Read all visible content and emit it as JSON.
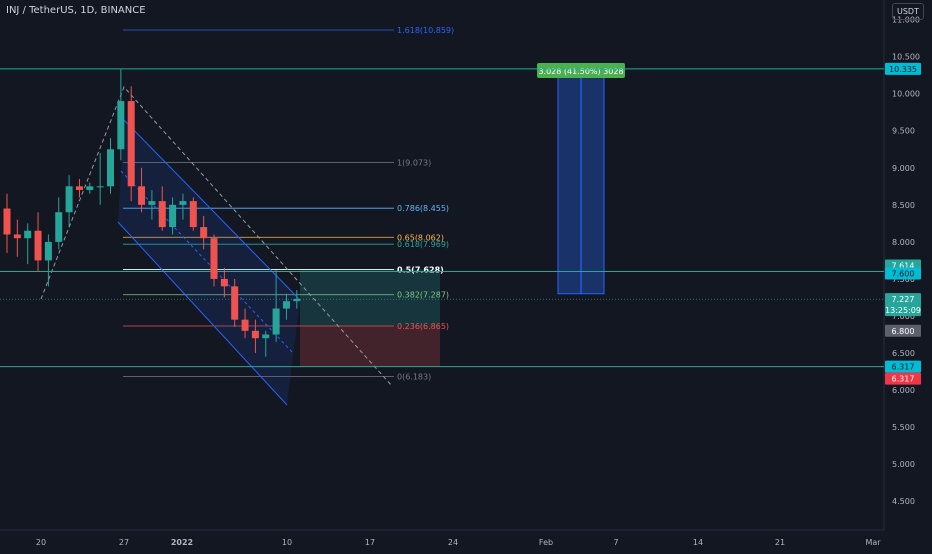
{
  "title": "INJ / TetherUS, 1D, BINANCE",
  "currency_button": "USDT",
  "colors": {
    "background": "#131722",
    "up": "#26a69a",
    "down": "#ef5350",
    "grid_text": "#b2b5be",
    "horizontal_line": "#22ab94",
    "channel": "#2962ff",
    "measure_box": "#1c3a7a",
    "measure_label_bg": "#4caf50",
    "price_tag_current": "#26a69a",
    "price_tag_grey": "#5d606b",
    "price_tag_red": "#f23645",
    "price_tag_cyan": "#00bcd4"
  },
  "chart_data": {
    "type": "candlestick",
    "y_axis": {
      "ticks": [
        "11.000",
        "10.500",
        "10.000",
        "9.500",
        "9.000",
        "8.500",
        "8.000",
        "7.500",
        "7.000",
        "6.500",
        "6.000",
        "5.500",
        "5.000",
        "4.500"
      ],
      "range": [
        4.4,
        11.5
      ]
    },
    "x_axis": {
      "ticks": [
        "20",
        "27",
        "2022",
        "10",
        "17",
        "24",
        "Feb",
        "7",
        "14",
        "21",
        "Mar"
      ]
    },
    "candles": [
      {
        "o": 8.45,
        "h": 8.65,
        "l": 7.85,
        "c": 8.1
      },
      {
        "o": 8.1,
        "h": 8.3,
        "l": 7.8,
        "c": 8.05
      },
      {
        "o": 8.05,
        "h": 8.25,
        "l": 7.7,
        "c": 8.15
      },
      {
        "o": 8.15,
        "h": 8.4,
        "l": 7.6,
        "c": 7.75
      },
      {
        "o": 7.75,
        "h": 8.1,
        "l": 7.4,
        "c": 8.0
      },
      {
        "o": 8.0,
        "h": 8.6,
        "l": 7.9,
        "c": 8.4
      },
      {
        "o": 8.4,
        "h": 8.9,
        "l": 8.2,
        "c": 8.75
      },
      {
        "o": 8.75,
        "h": 8.85,
        "l": 8.6,
        "c": 8.7
      },
      {
        "o": 8.7,
        "h": 8.8,
        "l": 8.65,
        "c": 8.75
      },
      {
        "o": 8.75,
        "h": 9.2,
        "l": 8.5,
        "c": 8.75
      },
      {
        "o": 8.75,
        "h": 9.4,
        "l": 8.65,
        "c": 9.25
      },
      {
        "o": 9.25,
        "h": 10.33,
        "l": 9.1,
        "c": 9.9
      },
      {
        "o": 9.9,
        "h": 10.1,
        "l": 8.55,
        "c": 8.75
      },
      {
        "o": 8.75,
        "h": 9.0,
        "l": 8.4,
        "c": 8.5
      },
      {
        "o": 8.5,
        "h": 8.7,
        "l": 8.3,
        "c": 8.55
      },
      {
        "o": 8.55,
        "h": 8.75,
        "l": 8.15,
        "c": 8.2
      },
      {
        "o": 8.2,
        "h": 8.6,
        "l": 8.1,
        "c": 8.5
      },
      {
        "o": 8.5,
        "h": 8.65,
        "l": 8.3,
        "c": 8.55
      },
      {
        "o": 8.55,
        "h": 8.6,
        "l": 8.15,
        "c": 8.2
      },
      {
        "o": 8.2,
        "h": 8.35,
        "l": 7.9,
        "c": 8.05
      },
      {
        "o": 8.05,
        "h": 8.1,
        "l": 7.4,
        "c": 7.5
      },
      {
        "o": 7.5,
        "h": 7.65,
        "l": 7.25,
        "c": 7.4
      },
      {
        "o": 7.4,
        "h": 7.5,
        "l": 6.85,
        "c": 6.95
      },
      {
        "o": 6.95,
        "h": 7.1,
        "l": 6.7,
        "c": 6.8
      },
      {
        "o": 6.8,
        "h": 6.95,
        "l": 6.5,
        "c": 6.7
      },
      {
        "o": 6.7,
        "h": 6.8,
        "l": 6.45,
        "c": 6.75
      },
      {
        "o": 6.75,
        "h": 7.62,
        "l": 6.65,
        "c": 7.1
      },
      {
        "o": 7.1,
        "h": 7.3,
        "l": 6.95,
        "c": 7.2
      },
      {
        "o": 7.2,
        "h": 7.35,
        "l": 7.1,
        "c": 7.23
      }
    ],
    "fib_levels": [
      {
        "label": "1.618(10.859)",
        "value": 10.859,
        "color": "#2962ff"
      },
      {
        "label": "1(9.073)",
        "value": 9.073,
        "color": "#787b86"
      },
      {
        "label": "0.786(8.455)",
        "value": 8.455,
        "color": "#64b5f6"
      },
      {
        "label": "0.65(8.062)",
        "value": 8.062,
        "color": "#ffb74d"
      },
      {
        "label": "0.618(7.969)",
        "value": 7.969,
        "color": "#26a69a"
      },
      {
        "label": "0.5(7.628)",
        "value": 7.628,
        "color": "#ffffff"
      },
      {
        "label": "0.382(7.287)",
        "value": 7.287,
        "color": "#81c784"
      },
      {
        "label": "0.236(6.865)",
        "value": 6.865,
        "color": "#ef5350"
      },
      {
        "label": "0(6.183)",
        "value": 6.183,
        "color": "#787b86"
      }
    ],
    "horizontal_lines": [
      10.335,
      7.6,
      6.317
    ],
    "measure": {
      "label": "3.028 (41.50%) 3028",
      "from": 7.3,
      "to": 10.335
    },
    "price_tags": [
      {
        "text": "10.335",
        "value": 10.335,
        "style": "cyan"
      },
      {
        "text": "7.614",
        "value": 7.614,
        "style": "current"
      },
      {
        "text": "7.600",
        "value": 7.6,
        "style": "cyan"
      },
      {
        "text": "7.227",
        "value": 7.227,
        "style": "current"
      },
      {
        "text": "13:25:09",
        "value": 7.227,
        "style": "countdown"
      },
      {
        "text": "6.800",
        "value": 6.8,
        "style": "grey"
      },
      {
        "text": "6.317",
        "value": 6.317,
        "style": "cyan"
      },
      {
        "text": "6.317",
        "value": 6.317,
        "style": "red"
      }
    ]
  }
}
